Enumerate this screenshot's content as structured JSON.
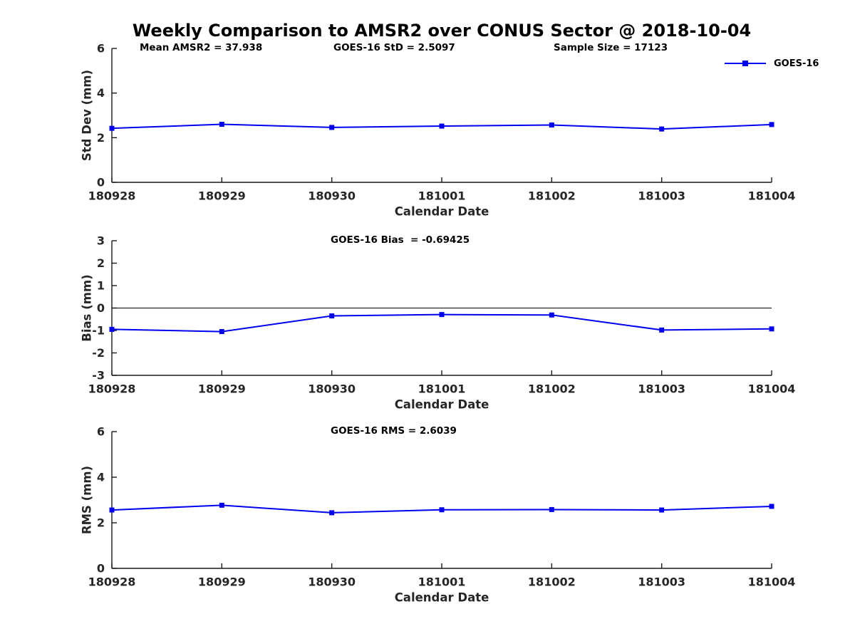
{
  "title": "Weekly Comparison to AMSR2 over CONUS Sector @ 2018-10-04",
  "legend": {
    "label": "GOES-16",
    "color": "#0000EE"
  },
  "colors": {
    "series": "#0000EE",
    "axis": "#1a1a1a",
    "tick_label": "#262626",
    "zero_line": "#000000",
    "background": "#ffffff"
  },
  "chart_data": [
    {
      "type": "line",
      "id": "std-dev",
      "ylabel": "Std Dev (mm)",
      "xlabel": "Calendar Date",
      "ylim": [
        0,
        6
      ],
      "yticks": [
        0,
        2,
        4,
        6
      ],
      "categories": [
        "180928",
        "180929",
        "180930",
        "181001",
        "181002",
        "181003",
        "181004"
      ],
      "series": [
        {
          "name": "GOES-16",
          "marker": "square",
          "values": [
            2.42,
            2.6,
            2.46,
            2.52,
            2.57,
            2.39,
            2.59
          ]
        }
      ],
      "annotations": [
        "Mean AMSR2 = 37.938",
        "GOES-16 StD = 2.5097",
        "Sample Size = 17123"
      ],
      "zero_line": false,
      "legend_position": "upper-right-outside",
      "grid": false
    },
    {
      "type": "line",
      "id": "bias",
      "ylabel": "Bias (mm)",
      "xlabel": "Calendar Date",
      "ylim": [
        -3,
        3
      ],
      "yticks": [
        3,
        2,
        1,
        0,
        -1,
        -2,
        -3
      ],
      "categories": [
        "180928",
        "180929",
        "180930",
        "181001",
        "181002",
        "181003",
        "181004"
      ],
      "series": [
        {
          "name": "GOES-16",
          "marker": "square",
          "values": [
            -0.95,
            -1.05,
            -0.35,
            -0.29,
            -0.31,
            -0.98,
            -0.93
          ]
        }
      ],
      "annotations": [
        "GOES-16 Bias  = -0.69425"
      ],
      "zero_line": true,
      "grid": false
    },
    {
      "type": "line",
      "id": "rms",
      "ylabel": "RMS (mm)",
      "xlabel": "Calendar Date",
      "ylim": [
        0,
        6
      ],
      "yticks": [
        0,
        2,
        4,
        6
      ],
      "categories": [
        "180928",
        "180929",
        "180930",
        "181001",
        "181002",
        "181003",
        "181004"
      ],
      "series": [
        {
          "name": "GOES-16",
          "marker": "square",
          "values": [
            2.56,
            2.77,
            2.44,
            2.57,
            2.58,
            2.56,
            2.72
          ]
        }
      ],
      "annotations": [
        "GOES-16 RMS = 2.6039"
      ],
      "zero_line": false,
      "grid": false
    }
  ]
}
